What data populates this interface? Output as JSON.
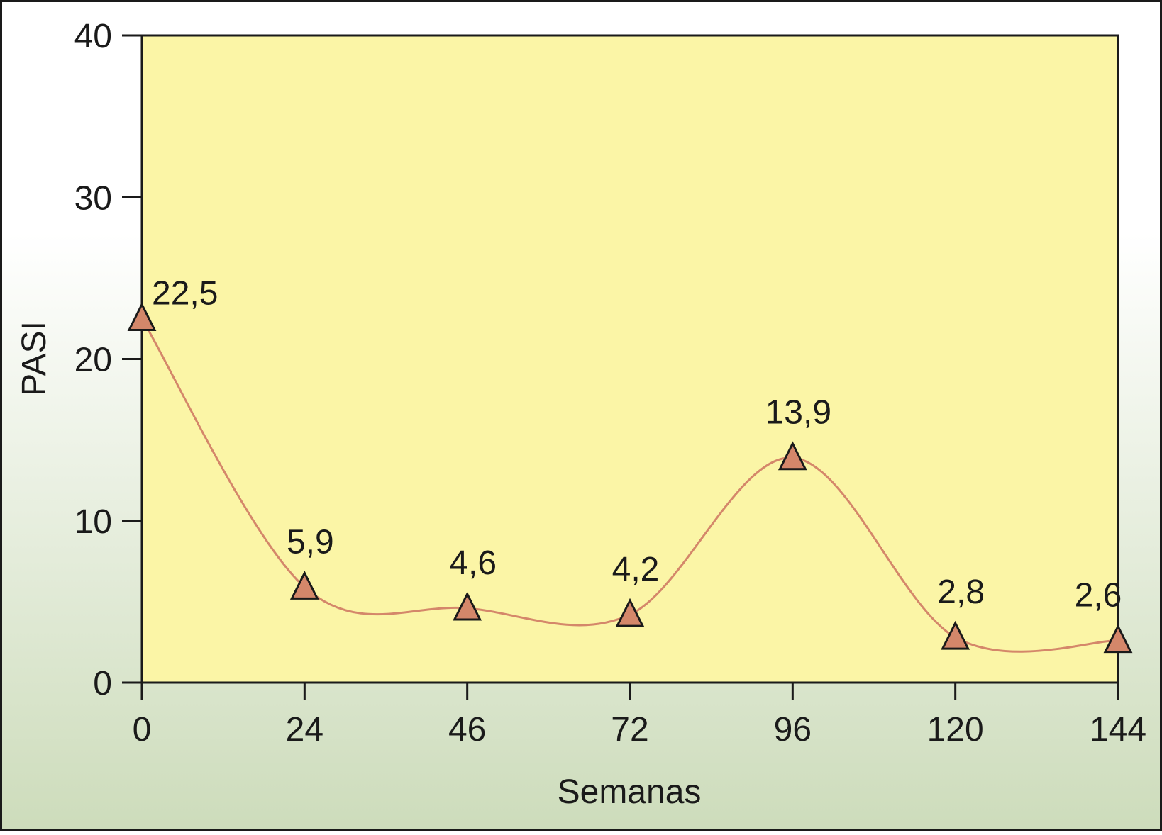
{
  "chart_data": {
    "type": "line",
    "xlabel": "Semanas",
    "ylabel": "PASI",
    "x_categories": [
      "0",
      "24",
      "46",
      "72",
      "96",
      "120",
      "144"
    ],
    "y_ticks": [
      "0",
      "10",
      "20",
      "30",
      "40"
    ],
    "ylim": [
      0,
      40
    ],
    "series": [
      {
        "values": [
          22.5,
          5.9,
          4.6,
          4.2,
          13.9,
          2.8,
          2.6
        ],
        "labels": [
          "22,5",
          "5,9",
          "4,6",
          "4,2",
          "13,9",
          "2,8",
          "2,6"
        ],
        "marker": "triangle"
      }
    ],
    "colors": {
      "plot_background": "#fbf5a6",
      "line": "#d4876a",
      "marker_fill": "#d4876a",
      "marker_stroke": "#1a1a1a",
      "page_gradient_top": "#ffffff",
      "page_gradient_bottom": "#cddcbb"
    },
    "grid": false,
    "legend": "none"
  }
}
